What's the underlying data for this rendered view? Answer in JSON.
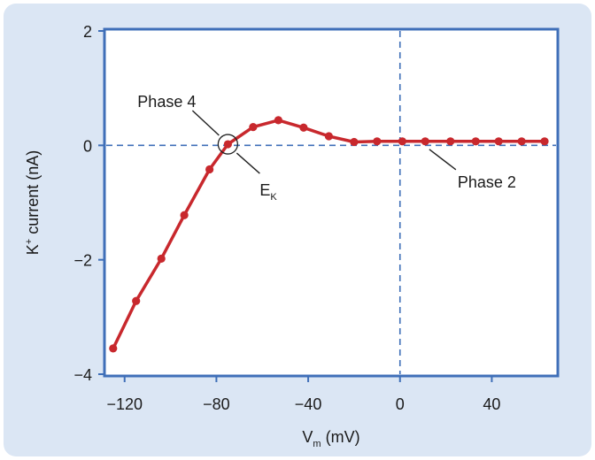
{
  "chart_data": {
    "type": "line",
    "title": "",
    "xlabel": {
      "main": "V",
      "sub": "m",
      "rest": " (mV)"
    },
    "ylabel": {
      "main": "K",
      "sup": "+",
      "rest": " current (nA)"
    },
    "xlim": [
      -128,
      68
    ],
    "ylim": [
      -4,
      2
    ],
    "x_ticks": [
      {
        "value": -120,
        "label": "−120"
      },
      {
        "value": -80,
        "label": "−80"
      },
      {
        "value": -40,
        "label": "−40"
      },
      {
        "value": 0,
        "label": "0"
      },
      {
        "value": 40,
        "label": "40"
      }
    ],
    "y_ticks": [
      {
        "value": 2,
        "label": "2"
      },
      {
        "value": 0,
        "label": "0"
      },
      {
        "value": -2,
        "label": "−2"
      },
      {
        "value": -4,
        "label": "−4"
      }
    ],
    "reference_lines": {
      "x_zero": true,
      "y_zero": true
    },
    "series": [
      {
        "color": "#c8282d",
        "points": [
          [
            -125,
            -3.55
          ],
          [
            -115,
            -2.72
          ],
          [
            -104,
            -1.98
          ],
          [
            -94,
            -1.22
          ],
          [
            -83,
            -0.42
          ],
          [
            -75,
            0.02
          ],
          [
            -64,
            0.32
          ],
          [
            -53,
            0.44
          ],
          [
            -42,
            0.31
          ],
          [
            -31,
            0.16
          ],
          [
            -20,
            0.06
          ],
          [
            -10,
            0.07
          ],
          [
            1,
            0.07
          ],
          [
            11,
            0.07
          ],
          [
            22,
            0.07
          ],
          [
            33,
            0.07
          ],
          [
            43,
            0.07
          ],
          [
            53,
            0.07
          ],
          [
            63,
            0.07
          ]
        ]
      }
    ],
    "annotations": {
      "phase4": {
        "label": "Phase 4",
        "x": -75,
        "y": 0.02
      },
      "ek": {
        "main": "E",
        "sub": "K",
        "x": -75,
        "y": 0.02
      },
      "phase2": {
        "label": "Phase 2",
        "x": 12,
        "y": 0.07
      }
    },
    "colors": {
      "panel": "#dbe6f4",
      "frame": "#3f6fb8",
      "reference": "#3f6fb8",
      "series": "#c8282d"
    }
  }
}
